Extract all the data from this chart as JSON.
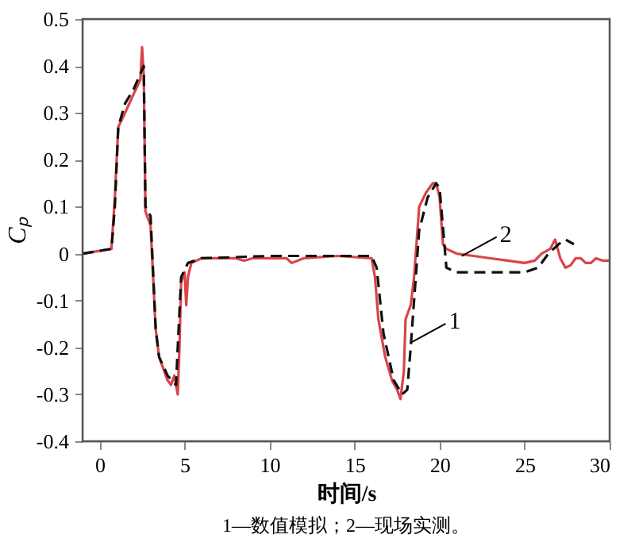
{
  "chart_data": {
    "type": "line",
    "xlabel": "时间/s",
    "ylabel": "Cₚ",
    "xlim": [
      -1,
      30
    ],
    "ylim": [
      -0.4,
      0.5
    ],
    "xticks": [
      0,
      5,
      10,
      15,
      20,
      25,
      30
    ],
    "yticks": [
      -0.4,
      -0.3,
      -0.2,
      -0.1,
      0,
      0.1,
      0.2,
      0.3,
      0.4,
      0.5
    ],
    "grid": false,
    "marker": "none",
    "series": [
      {
        "color": "#d9444a",
        "line_style": "solid",
        "x": [
          -1,
          0.7,
          0.9,
          1.1,
          1.5,
          2.0,
          2.4,
          2.5,
          2.6,
          2.7,
          3.0,
          3.3,
          3.5,
          3.8,
          4.0,
          4.2,
          4.4,
          4.6,
          4.7,
          4.8,
          5.0,
          5.1,
          5.2,
          5.4,
          6,
          8,
          8.5,
          9,
          11,
          11.3,
          12,
          14,
          16.0,
          16.2,
          16.4,
          16.8,
          17.2,
          17.5,
          17.7,
          17.9,
          18.0,
          18.3,
          18.5,
          18.8,
          19.2,
          19.6,
          19.8,
          20.0,
          20.2,
          20.4,
          21,
          22,
          23,
          24,
          25,
          25.6,
          26,
          26.5,
          26.8,
          27.1,
          27.4,
          27.7,
          28.0,
          28.3,
          28.6,
          28.9,
          29.2,
          29.6,
          30
        ],
        "values": [
          0,
          0.01,
          0.12,
          0.27,
          0.3,
          0.34,
          0.37,
          0.44,
          0.38,
          0.09,
          0.06,
          -0.16,
          -0.22,
          -0.25,
          -0.27,
          -0.28,
          -0.26,
          -0.3,
          -0.2,
          -0.06,
          -0.04,
          -0.11,
          -0.05,
          -0.02,
          -0.01,
          -0.01,
          -0.015,
          -0.01,
          -0.01,
          -0.02,
          -0.01,
          -0.005,
          -0.01,
          -0.05,
          -0.14,
          -0.22,
          -0.27,
          -0.29,
          -0.31,
          -0.25,
          -0.14,
          -0.11,
          -0.05,
          0.1,
          0.13,
          0.15,
          0.15,
          0.12,
          0.02,
          0.01,
          0,
          -0.005,
          -0.01,
          -0.015,
          -0.02,
          -0.015,
          0,
          0.01,
          0.03,
          -0.01,
          -0.03,
          -0.025,
          -0.01,
          -0.01,
          -0.02,
          -0.02,
          -0.01,
          -0.015,
          -0.015
        ]
      },
      {
        "color": "#111111",
        "line_style": "dashed",
        "x": [
          -1,
          0.7,
          0.9,
          1.1,
          1.5,
          2.0,
          2.6,
          2.7,
          3.0,
          3.3,
          3.5,
          4.0,
          4.5,
          4.6,
          4.8,
          5.2,
          6,
          10,
          16.0,
          16.3,
          16.7,
          17.3,
          17.8,
          18.1,
          18.3,
          18.4,
          18.8,
          19.3,
          19.8,
          20.0,
          20.4,
          21,
          22,
          25,
          25.8,
          26.4,
          27.0,
          27.4,
          27.9
        ],
        "values": [
          0,
          0.01,
          0.1,
          0.27,
          0.32,
          0.35,
          0.4,
          0.1,
          0.08,
          -0.16,
          -0.22,
          -0.26,
          -0.28,
          -0.2,
          -0.05,
          -0.02,
          -0.01,
          -0.005,
          -0.005,
          -0.03,
          -0.17,
          -0.27,
          -0.3,
          -0.29,
          -0.2,
          -0.15,
          0.05,
          0.12,
          0.15,
          0.14,
          -0.03,
          -0.04,
          -0.04,
          -0.04,
          -0.03,
          0,
          0.02,
          0.03,
          0.02
        ]
      }
    ],
    "annotations": [
      {
        "text": "1",
        "x": 18.3,
        "y": -0.19
      },
      {
        "text": "2",
        "x": 21.3,
        "y": -0.005
      },
      "1—数值模拟；2—现场实测。"
    ]
  }
}
